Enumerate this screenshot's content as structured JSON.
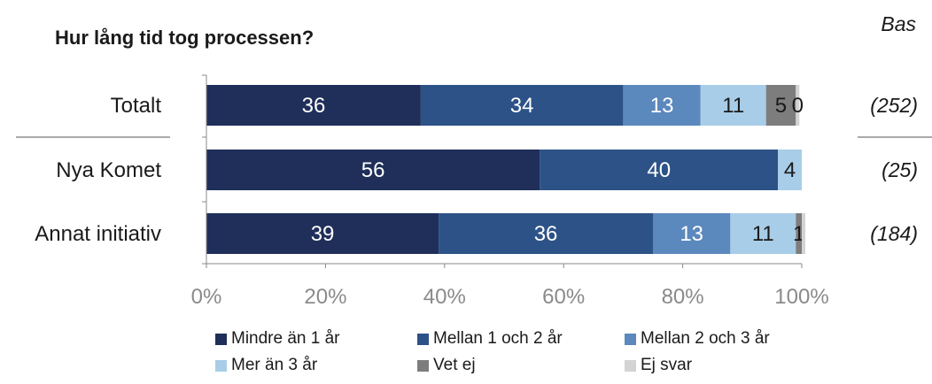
{
  "title": "Hur lång tid tog processen?",
  "base_header": "Bas",
  "chart_data": {
    "type": "bar",
    "orientation": "horizontal",
    "stacked": true,
    "title": "Hur lång tid tog processen?",
    "categories": [
      "Totalt",
      "Nya Komet",
      "Annat initiativ"
    ],
    "bases": [
      "(252)",
      "(25)",
      "(184)"
    ],
    "series": [
      {
        "name": "Mindre än 1 år",
        "color": "#1f2f5a",
        "values": [
          36,
          56,
          39
        ],
        "labels": [
          "36",
          "56",
          "39"
        ]
      },
      {
        "name": "Mellan 1 och 2 år",
        "color": "#2d5287",
        "values": [
          34,
          40,
          36
        ],
        "labels": [
          "34",
          "40",
          "36"
        ]
      },
      {
        "name": "Mellan 2 och 3 år",
        "color": "#5b88bd",
        "values": [
          13,
          0,
          13
        ],
        "labels": [
          "13",
          "",
          "13"
        ]
      },
      {
        "name": "Mer än 3 år",
        "color": "#a8cde8",
        "values": [
          11,
          4,
          11
        ],
        "labels": [
          "11",
          "4",
          "11"
        ]
      },
      {
        "name": "Vet ej",
        "color": "#7d7d7d",
        "values": [
          5,
          0,
          1
        ],
        "labels": [
          "5",
          "",
          "1"
        ]
      },
      {
        "name": "Ej svar",
        "color": "#d3d3d3",
        "values": [
          0.6,
          0,
          0.6
        ],
        "labels": [
          "0",
          "",
          ""
        ]
      }
    ],
    "x_ticks": [
      "0%",
      "20%",
      "40%",
      "60%",
      "80%",
      "100%"
    ],
    "xlim": [
      0,
      100
    ],
    "grid": false,
    "legend_position": "bottom"
  }
}
